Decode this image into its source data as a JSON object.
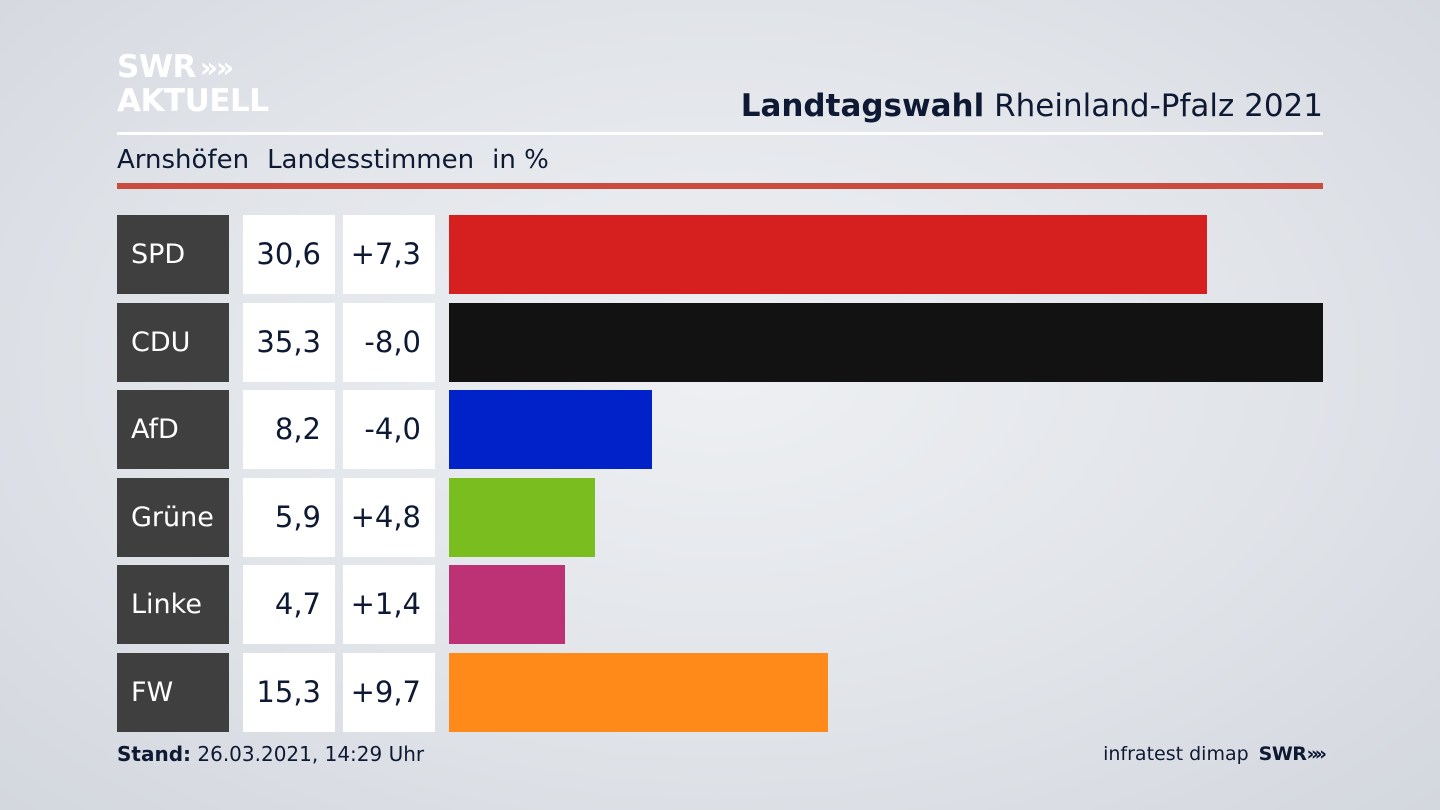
{
  "logo": {
    "line1": "SWR",
    "line1_chevrons": "»",
    "line2": "AKTUELL"
  },
  "header": {
    "title_bold": "Landtagswahl",
    "title_rest": " Rheinland-Pfalz 2021"
  },
  "subheader": {
    "place": "Arnshöfen",
    "vote_type": "Landesstimmen",
    "unit": "in %"
  },
  "chart_data": {
    "type": "bar",
    "orientation": "horizontal",
    "title": "Landtagswahl Rheinland-Pfalz 2021",
    "subtitle": "Arnshöfen Landesstimmen in %",
    "categories": [
      "SPD",
      "CDU",
      "AfD",
      "Grüne",
      "Linke",
      "FW"
    ],
    "values": [
      30.6,
      35.3,
      8.2,
      5.9,
      4.7,
      15.3
    ],
    "value_labels": [
      "30,6",
      "35,3",
      "8,2",
      "5,9",
      "4,7",
      "15,3"
    ],
    "diff_labels": [
      "+7,3",
      "-8,0",
      "-4,0",
      "+4,8",
      "+1,4",
      "+9,7"
    ],
    "diffs": [
      7.3,
      -8.0,
      -4.0,
      4.8,
      1.4,
      9.7
    ],
    "colors": [
      "#d62020",
      "#121212",
      "#0022c8",
      "#79bd1e",
      "#bd3175",
      "#ff8a1a"
    ],
    "xlim": [
      0,
      35.3
    ],
    "grid": false,
    "legend": "none"
  },
  "footer": {
    "stand_label": "Stand:",
    "stand_value": " 26.03.2021, 14:29 Uhr",
    "source": "infratest dimap",
    "brand": "SWR",
    "brand_chevrons": "»"
  }
}
